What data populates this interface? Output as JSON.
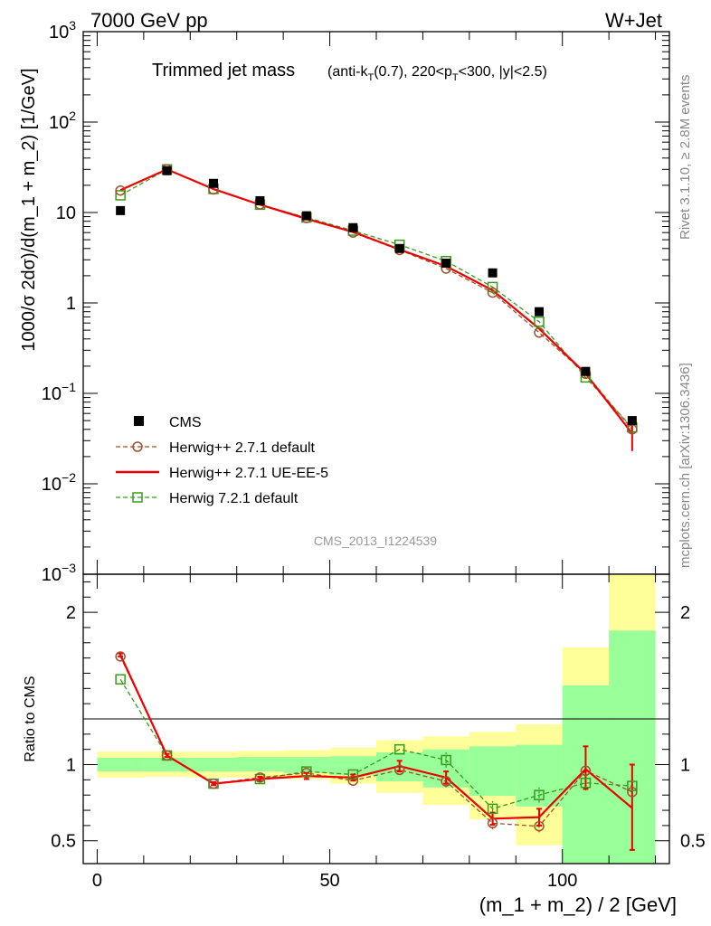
{
  "header": {
    "left": "7000 GeV pp",
    "right": "W+Jet"
  },
  "side_labels": {
    "rivet": "Rivet 3.1.10, ≥ 2.8M events",
    "mcplots": "mcplots.cern.ch [arXiv:1306.3436]"
  },
  "watermark": "CMS_2013_I1224539",
  "colors": {
    "data": "#000000",
    "herwig_default": "#a0522d",
    "herwig_ueee5": "#ee0000",
    "herwig7": "#3a9a1a",
    "band_yellow": "#ffff99",
    "band_green": "#99ff99"
  },
  "chart_data": [
    {
      "type": "line",
      "title": "Trimmed jet mass",
      "title_detail": "(anti-k_T(0.7), 220<p_T<300, |y|<2.5)",
      "ylabel": "1000/σ 2dσ)/d(m_1 + m_2) [1/GeV]",
      "yscale": "log",
      "ylim": [
        0.001,
        1000
      ],
      "xlim": [
        -3,
        123
      ],
      "y_tick_labels": [
        "10^-3",
        "10^-2",
        "10^-1",
        "1",
        "10",
        "10^2",
        "10^3"
      ],
      "x": [
        5,
        15,
        25,
        35,
        45,
        55,
        65,
        75,
        85,
        95,
        105,
        115
      ],
      "legend": {
        "position": "lower-left",
        "entries": [
          "CMS",
          "Herwig++ 2.7.1 default",
          "Herwig++ 2.7.1 UE-EE-5",
          "Herwig 7.2.1 default"
        ]
      },
      "series": [
        {
          "name": "CMS",
          "style": "markers",
          "values": [
            10.5,
            29,
            21,
            13.5,
            9.2,
            6.8,
            4.0,
            2.75,
            2.15,
            0.8,
            0.175,
            0.05
          ]
        },
        {
          "name": "Herwig++ 2.7.1 default",
          "style": "dashed-circle",
          "values": [
            17.5,
            30,
            18.0,
            12.3,
            8.7,
            6.0,
            3.85,
            2.4,
            1.3,
            0.47,
            0.165,
            0.04
          ]
        },
        {
          "name": "Herwig++ 2.7.1 UE-EE-5",
          "style": "solid",
          "values": [
            17.7,
            30,
            18.2,
            12.2,
            8.5,
            6.1,
            3.9,
            2.55,
            1.38,
            0.52,
            0.165,
            0.036
          ],
          "err_last": [
            0.023,
            0.045
          ]
        },
        {
          "name": "Herwig 7.2.1 default",
          "style": "dashed-square",
          "values": [
            15.5,
            30,
            18.2,
            12.2,
            8.8,
            6.3,
            4.4,
            2.9,
            1.5,
            0.62,
            0.15,
            0.042
          ]
        }
      ]
    },
    {
      "type": "line",
      "ylabel": "Ratio to CMS",
      "xlabel": "(m_1 + m_2) / 2 [GeV]",
      "ylim": [
        0.35,
        2.25
      ],
      "xlim": [
        -3,
        123
      ],
      "x_ticks": [
        "0",
        "50",
        "100"
      ],
      "y_ticks": [
        "0.5",
        "1",
        "2"
      ],
      "x": [
        5,
        15,
        25,
        35,
        45,
        55,
        65,
        75,
        85,
        95,
        105,
        115
      ],
      "bins": [
        0,
        10,
        20,
        30,
        40,
        50,
        60,
        70,
        80,
        90,
        100,
        110,
        120
      ],
      "band_yellow": [
        [
          0.915,
          1.085
        ],
        [
          0.92,
          1.085
        ],
        [
          0.915,
          1.085
        ],
        [
          0.915,
          1.09
        ],
        [
          0.905,
          1.095
        ],
        [
          0.875,
          1.11
        ],
        [
          0.815,
          1.16
        ],
        [
          0.735,
          1.185
        ],
        [
          0.64,
          1.215
        ],
        [
          0.47,
          1.265
        ],
        [
          0.24,
          1.77
        ],
        [
          0.1,
          2.25
        ]
      ],
      "band_green": [
        [
          0.955,
          1.045
        ],
        [
          0.955,
          1.045
        ],
        [
          0.955,
          1.045
        ],
        [
          0.955,
          1.05
        ],
        [
          0.945,
          1.05
        ],
        [
          0.93,
          1.055
        ],
        [
          0.89,
          1.08
        ],
        [
          0.85,
          1.1
        ],
        [
          0.795,
          1.12
        ],
        [
          0.725,
          1.13
        ],
        [
          0.35,
          1.52
        ],
        [
          0.2,
          1.88
        ]
      ],
      "series": [
        {
          "name": "Herwig++ 2.7.1 default",
          "values": [
            1.71,
            1.06,
            0.875,
            0.915,
            0.945,
            0.895,
            0.965,
            0.89,
            0.615,
            0.595,
            0.96,
            0.82
          ]
        },
        {
          "name": "Herwig++ 2.7.1 UE-EE-5",
          "values": [
            1.72,
            1.06,
            0.875,
            0.905,
            0.925,
            0.915,
            0.99,
            0.915,
            0.645,
            0.655,
            0.97,
            0.715
          ],
          "err": [
            [
              1.71,
              1.73
            ],
            [
              1.05,
              1.07
            ],
            [
              0.865,
              0.885
            ],
            [
              0.89,
              0.92
            ],
            [
              0.905,
              0.945
            ],
            [
              0.895,
              0.935
            ],
            [
              0.955,
              1.025
            ],
            [
              0.875,
              0.955
            ],
            [
              0.605,
              0.685
            ],
            [
              0.6,
              0.71
            ],
            [
              0.84,
              1.12
            ],
            [
              0.44,
              1.0
            ]
          ]
        },
        {
          "name": "Herwig 7.2.1 default",
          "values": [
            1.56,
            1.06,
            0.875,
            0.905,
            0.955,
            0.935,
            1.1,
            1.03,
            0.71,
            0.8,
            0.88,
            0.86
          ]
        }
      ]
    }
  ]
}
